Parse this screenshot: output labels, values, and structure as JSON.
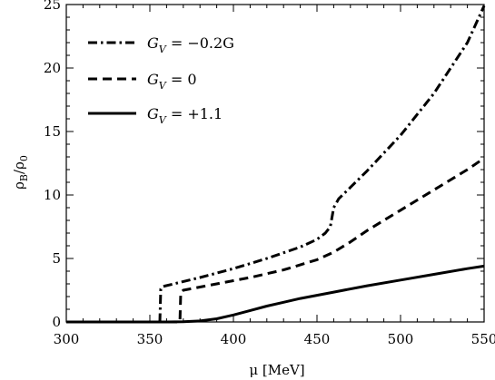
{
  "chart_data": {
    "type": "line",
    "title": "",
    "xlabel": "μ [MeV]",
    "ylabel": "ρ_B/ρ_0",
    "xlim": [
      300,
      550
    ],
    "ylim": [
      0,
      25
    ],
    "xticks": [
      300,
      350,
      400,
      450,
      500,
      550
    ],
    "yticks": [
      0,
      5,
      10,
      15,
      20,
      25
    ],
    "grid": false,
    "legend_position": "top-left",
    "series": [
      {
        "name": "G_V = −0.2G",
        "style": "dash-dot",
        "x": [
          300,
          340,
          356,
          356.5,
          358,
          380,
          400,
          420,
          440,
          450,
          455,
          458,
          460,
          463,
          470,
          480,
          500,
          520,
          540,
          550
        ],
        "y": [
          0,
          0,
          0,
          2.6,
          2.8,
          3.5,
          4.2,
          5.0,
          5.9,
          6.5,
          7.0,
          7.5,
          9.0,
          9.7,
          10.6,
          11.9,
          14.7,
          18.0,
          22.0,
          24.9
        ]
      },
      {
        "name": "G_V = 0",
        "style": "dashed",
        "x": [
          300,
          360,
          368,
          368.5,
          370,
          390,
          410,
          430,
          450,
          460,
          470,
          480,
          500,
          520,
          540,
          550
        ],
        "y": [
          0,
          0,
          0,
          2.3,
          2.5,
          3.0,
          3.5,
          4.1,
          4.9,
          5.5,
          6.3,
          7.2,
          8.8,
          10.4,
          12.0,
          12.9
        ]
      },
      {
        "name": "G_V = +1.1",
        "style": "solid",
        "x": [
          300,
          360,
          370,
          380,
          390,
          400,
          410,
          420,
          430,
          440,
          450,
          460,
          480,
          500,
          520,
          540,
          550
        ],
        "y": [
          0,
          0,
          0.02,
          0.08,
          0.25,
          0.55,
          0.9,
          1.25,
          1.55,
          1.85,
          2.1,
          2.35,
          2.85,
          3.3,
          3.75,
          4.2,
          4.4
        ]
      }
    ]
  },
  "legend": {
    "items": [
      {
        "sym": "G",
        "sub": "V",
        "rest": " = −0.2G"
      },
      {
        "sym": "G",
        "sub": "V",
        "rest": " = 0"
      },
      {
        "sym": "G",
        "sub": "V",
        "rest": " = +1.1"
      }
    ]
  },
  "axes": {
    "xlabel": "μ [MeV]",
    "ylabel_main": "ρ",
    "ylabel_sub1": "B",
    "ylabel_mid": "/ρ",
    "ylabel_sub2": "0"
  }
}
